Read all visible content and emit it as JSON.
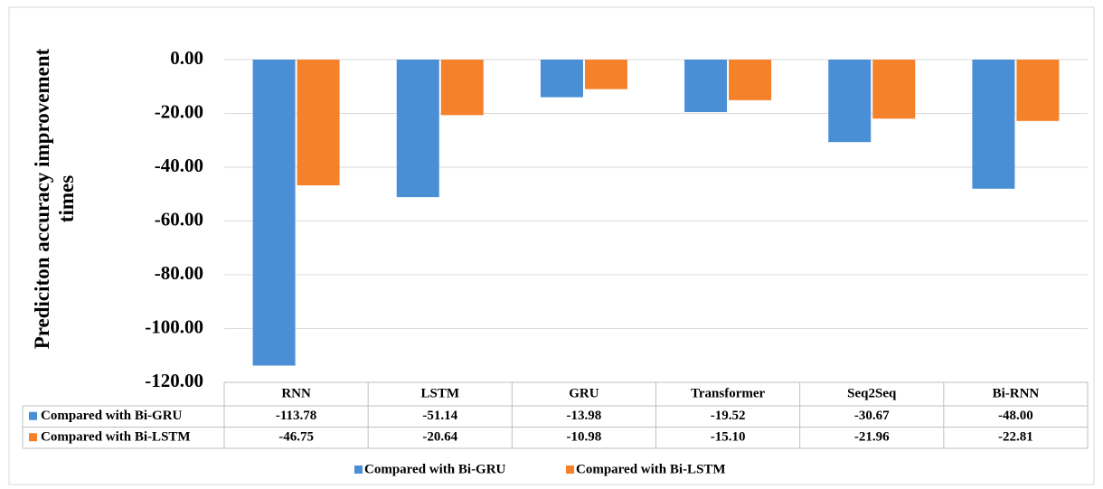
{
  "chart_data": {
    "type": "bar",
    "y_label": "Prediciton accuracy improvement times",
    "categories": [
      "RNN",
      "LSTM",
      "GRU",
      "Transformer",
      "Seq2Seq",
      "Bi-RNN"
    ],
    "series": [
      {
        "name": "Compared with Bi-GRU",
        "color": "#4a8fd6",
        "values": [
          -113.78,
          -51.14,
          -13.98,
          -19.52,
          -30.67,
          -48
        ],
        "value_labels": [
          "-113.78",
          "-51.14",
          "-13.98",
          "-19.52",
          "-30.67",
          "-48.00"
        ]
      },
      {
        "name": "Compared with Bi-LSTM",
        "color": "#f5812a",
        "values": [
          -46.75,
          -20.64,
          -10.98,
          -15.1,
          -21.96,
          -22.81
        ],
        "value_labels": [
          "-46.75",
          "-20.64",
          "-10.98",
          "-15.10",
          "-21.96",
          "-22.81"
        ]
      }
    ],
    "ylim": [
      -120,
      10
    ],
    "yticks": [
      {
        "value": 0,
        "label": "0.00"
      },
      {
        "value": -20,
        "label": "-20.00"
      },
      {
        "value": -40,
        "label": "-40.00"
      },
      {
        "value": -60,
        "label": "-60.00"
      },
      {
        "value": -80,
        "label": "-80.00"
      },
      {
        "value": -100,
        "label": "-100.00"
      },
      {
        "value": -120,
        "label": "-120.00"
      }
    ],
    "grid": true,
    "legend": "bottom"
  }
}
